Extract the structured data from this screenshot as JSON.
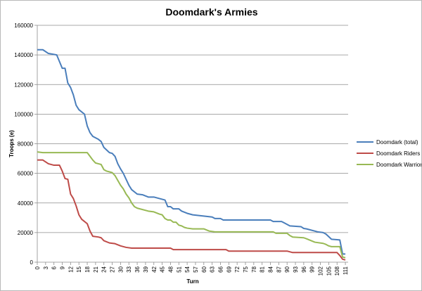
{
  "chart_data": {
    "type": "line",
    "title": "Doomdark's Armies",
    "xlabel": "Turn",
    "ylabel": "Troops (e)",
    "ylim": [
      0,
      160000
    ],
    "y_ticks": [
      "0",
      "20000",
      "40000",
      "60000",
      "80000",
      "100000",
      "120000",
      "140000",
      "160000"
    ],
    "x_ticks": [
      "0",
      "3",
      "6",
      "9",
      "12",
      "15",
      "18",
      "21",
      "24",
      "27",
      "30",
      "33",
      "36",
      "39",
      "42",
      "45",
      "48",
      "51",
      "54",
      "57",
      "60",
      "63",
      "66",
      "69",
      "72",
      "75",
      "78",
      "81",
      "84",
      "87",
      "90",
      "93",
      "96",
      "99",
      "102",
      "105",
      "108",
      "111"
    ],
    "x_range": [
      0,
      112
    ],
    "grid": "horizontal",
    "legend_position": "right",
    "series": [
      {
        "name": "Doomdark (total)",
        "color": "#4a7ebb",
        "points": [
          [
            0,
            143500
          ],
          [
            2,
            143500
          ],
          [
            4,
            141000
          ],
          [
            7,
            140000
          ],
          [
            9,
            131000
          ],
          [
            10,
            131000
          ],
          [
            11,
            121000
          ],
          [
            12,
            118000
          ],
          [
            13,
            113000
          ],
          [
            14,
            106000
          ],
          [
            15,
            103000
          ],
          [
            17,
            100000
          ],
          [
            18,
            92000
          ],
          [
            19,
            87500
          ],
          [
            20,
            85000
          ],
          [
            22,
            83000
          ],
          [
            23,
            81500
          ],
          [
            24,
            77500
          ],
          [
            26,
            74000
          ],
          [
            27,
            73500
          ],
          [
            28,
            71500
          ],
          [
            29,
            66500
          ],
          [
            30,
            63000
          ],
          [
            31,
            60000
          ],
          [
            33,
            52000
          ],
          [
            34,
            49000
          ],
          [
            36,
            46000
          ],
          [
            38,
            45500
          ],
          [
            40,
            44000
          ],
          [
            42,
            44000
          ],
          [
            44,
            43000
          ],
          [
            46,
            42000
          ],
          [
            47,
            37500
          ],
          [
            48,
            37500
          ],
          [
            49,
            36000
          ],
          [
            51,
            36000
          ],
          [
            52,
            34500
          ],
          [
            54,
            33000
          ],
          [
            56,
            32000
          ],
          [
            63,
            30500
          ],
          [
            64,
            29500
          ],
          [
            66,
            29500
          ],
          [
            67,
            28500
          ],
          [
            84,
            28500
          ],
          [
            85,
            27500
          ],
          [
            88,
            27500
          ],
          [
            89,
            26500
          ],
          [
            90,
            25500
          ],
          [
            91,
            24500
          ],
          [
            95,
            24000
          ],
          [
            96,
            22800
          ],
          [
            97,
            22500
          ],
          [
            101,
            20500
          ],
          [
            103,
            20000
          ],
          [
            104,
            19000
          ],
          [
            106,
            15500
          ],
          [
            108,
            15200
          ],
          [
            109,
            15000
          ],
          [
            110,
            5500
          ],
          [
            111,
            5500
          ]
        ]
      },
      {
        "name": "Doomdark Riders",
        "color": "#be4b48",
        "points": [
          [
            0,
            69000
          ],
          [
            2,
            69000
          ],
          [
            4,
            66500
          ],
          [
            6,
            65500
          ],
          [
            8,
            65500
          ],
          [
            9,
            61500
          ],
          [
            10,
            56500
          ],
          [
            11,
            56000
          ],
          [
            12,
            46000
          ],
          [
            13,
            43000
          ],
          [
            14,
            38000
          ],
          [
            15,
            32000
          ],
          [
            16,
            29000
          ],
          [
            18,
            26000
          ],
          [
            19,
            21000
          ],
          [
            20,
            17500
          ],
          [
            22,
            17000
          ],
          [
            23,
            16500
          ],
          [
            24,
            14500
          ],
          [
            26,
            13000
          ],
          [
            28,
            12500
          ],
          [
            30,
            11000
          ],
          [
            32,
            10000
          ],
          [
            34,
            9500
          ],
          [
            48,
            9500
          ],
          [
            49,
            8500
          ],
          [
            68,
            8500
          ],
          [
            69,
            7500
          ],
          [
            90,
            7500
          ],
          [
            92,
            6500
          ],
          [
            108,
            6500
          ],
          [
            109,
            4500
          ],
          [
            110,
            2000
          ],
          [
            111,
            1500
          ]
        ]
      },
      {
        "name": "Doomdark Warriors",
        "color": "#98b954",
        "points": [
          [
            0,
            74500
          ],
          [
            2,
            74000
          ],
          [
            18,
            74000
          ],
          [
            19,
            71500
          ],
          [
            20,
            69000
          ],
          [
            21,
            67000
          ],
          [
            22,
            66500
          ],
          [
            23,
            66000
          ],
          [
            24,
            62500
          ],
          [
            25,
            61500
          ],
          [
            26,
            61000
          ],
          [
            27,
            60500
          ],
          [
            28,
            58500
          ],
          [
            30,
            52000
          ],
          [
            31,
            49500
          ],
          [
            32,
            46000
          ],
          [
            33,
            43500
          ],
          [
            34,
            40000
          ],
          [
            35,
            37500
          ],
          [
            36,
            36500
          ],
          [
            40,
            34500
          ],
          [
            42,
            34000
          ],
          [
            44,
            32500
          ],
          [
            45,
            32000
          ],
          [
            46,
            29500
          ],
          [
            47,
            28500
          ],
          [
            48,
            28500
          ],
          [
            49,
            27000
          ],
          [
            50,
            27000
          ],
          [
            51,
            25000
          ],
          [
            52,
            24500
          ],
          [
            53,
            23500
          ],
          [
            54,
            23000
          ],
          [
            56,
            22500
          ],
          [
            60,
            22500
          ],
          [
            62,
            21000
          ],
          [
            64,
            20500
          ],
          [
            85,
            20500
          ],
          [
            86,
            19500
          ],
          [
            90,
            19500
          ],
          [
            91,
            18000
          ],
          [
            92,
            17000
          ],
          [
            96,
            16500
          ],
          [
            97,
            15800
          ],
          [
            100,
            13500
          ],
          [
            103,
            12700
          ],
          [
            104,
            12000
          ],
          [
            105,
            11000
          ],
          [
            106,
            10500
          ],
          [
            109,
            10500
          ],
          [
            110,
            3500
          ],
          [
            111,
            3000
          ]
        ]
      }
    ]
  }
}
